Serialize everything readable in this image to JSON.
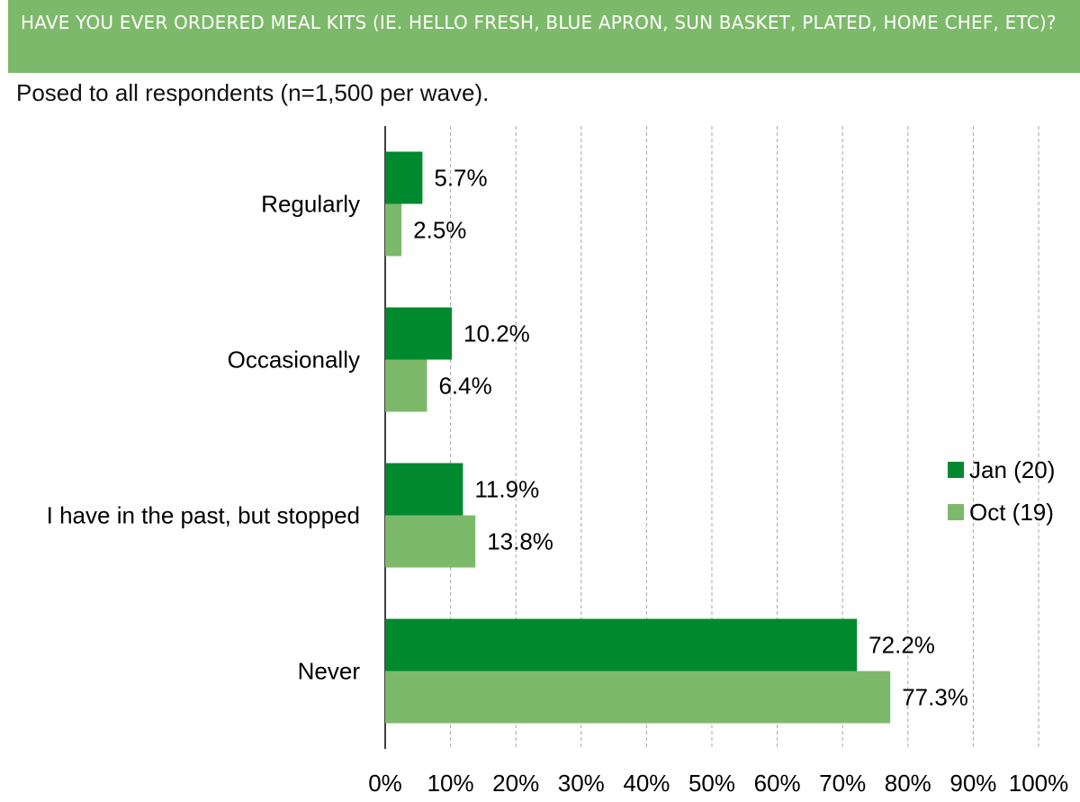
{
  "header": {
    "title": "HAVE YOU EVER ORDERED MEAL KITS (IE. HELLO FRESH, BLUE APRON, SUN BASKET, PLATED, HOME CHEF, ETC)?"
  },
  "subtitle": "Posed to all respondents (n=1,500 per wave).",
  "chart_data": {
    "type": "bar",
    "orientation": "horizontal",
    "categories": [
      "Regularly",
      "Occasionally",
      "I have in the past, but stopped",
      "Never"
    ],
    "series": [
      {
        "name": "Jan (20)",
        "color": "#00892f",
        "values": [
          5.7,
          10.2,
          11.9,
          72.2
        ],
        "labels": [
          "5.7%",
          "10.2%",
          "11.9%",
          "72.2%"
        ]
      },
      {
        "name": "Oct (19)",
        "color": "#7db96a",
        "values": [
          2.5,
          6.4,
          13.8,
          77.3
        ],
        "labels": [
          "2.5%",
          "6.4%",
          "13.8%",
          "77.3%"
        ]
      }
    ],
    "xlim": [
      0,
      100
    ],
    "xticks": [
      "0%",
      "10%",
      "20%",
      "30%",
      "40%",
      "50%",
      "60%",
      "70%",
      "80%",
      "90%",
      "100%"
    ],
    "grid": "vertical dashed",
    "legend_position": "right"
  }
}
